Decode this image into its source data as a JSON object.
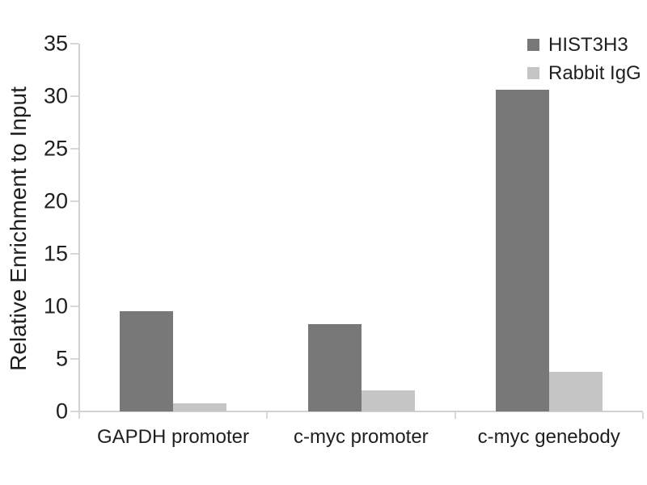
{
  "chart_data": {
    "type": "bar",
    "title": "",
    "ylabel": "Relative Enrichment to Input",
    "xlabel": "",
    "categories": [
      "GAPDH promoter",
      "c-myc promoter",
      "c-myc genebody"
    ],
    "series": [
      {
        "name": "HIST3H3",
        "color": "#787878",
        "values": [
          9.5,
          8.3,
          30.6
        ]
      },
      {
        "name": "Rabbit IgG",
        "color": "#c5c5c5",
        "values": [
          0.8,
          2.0,
          3.8
        ]
      }
    ],
    "ylim": [
      0,
      35
    ],
    "yticks": [
      0,
      5,
      10,
      15,
      20,
      25,
      30,
      35
    ],
    "grid": false,
    "legend_position": "top-right",
    "axis_color": "#d2d2d2",
    "tick_color": "#d8d8d8",
    "text_color": "#1f1f1f",
    "background_color": "#ffffff"
  }
}
